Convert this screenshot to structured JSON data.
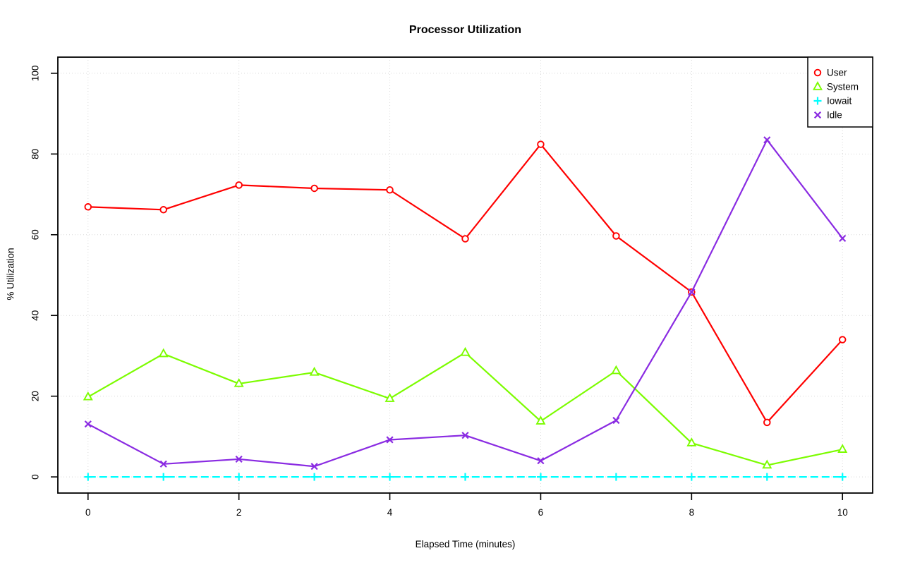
{
  "page": {
    "background": "#ffffff"
  },
  "chart_data": {
    "type": "line",
    "title": "Processor Utilization",
    "xlabel": "Elapsed Time (minutes)",
    "ylabel": "% Utilization",
    "x": [
      0,
      1,
      2,
      3,
      4,
      5,
      6,
      7,
      8,
      9,
      10
    ],
    "series": [
      {
        "name": "User",
        "color": "#ff0000",
        "marker": "circle",
        "line": "solid",
        "values": [
          66.9,
          66.2,
          72.3,
          71.5,
          71.1,
          59.0,
          82.4,
          59.7,
          45.8,
          13.5,
          34.0
        ]
      },
      {
        "name": "System",
        "color": "#7cfc00",
        "marker": "triangle",
        "line": "solid",
        "values": [
          19.8,
          30.5,
          23.1,
          25.9,
          19.4,
          30.8,
          13.8,
          26.3,
          8.4,
          2.9,
          6.8
        ]
      },
      {
        "name": "Iowait",
        "color": "#00ffff",
        "marker": "plus",
        "line": "dashed",
        "values": [
          0,
          0,
          0,
          0,
          0,
          0,
          0,
          0,
          0,
          0,
          0
        ]
      },
      {
        "name": "Idle",
        "color": "#8a2be2",
        "marker": "x",
        "line": "solid",
        "values": [
          13.1,
          3.2,
          4.4,
          2.6,
          9.2,
          10.3,
          4.0,
          14.0,
          45.8,
          83.5,
          59.1
        ]
      }
    ],
    "x_ticks": [
      0,
      2,
      4,
      6,
      8,
      10
    ],
    "y_ticks": [
      0,
      20,
      40,
      60,
      80,
      100
    ],
    "xlim": [
      0,
      10
    ],
    "ylim": [
      0,
      100
    ],
    "axis_pad_frac": 0.04,
    "grid": true,
    "grid_color": "#d9d9d9",
    "axis_color": "#000000",
    "legend_position": "top-right"
  }
}
